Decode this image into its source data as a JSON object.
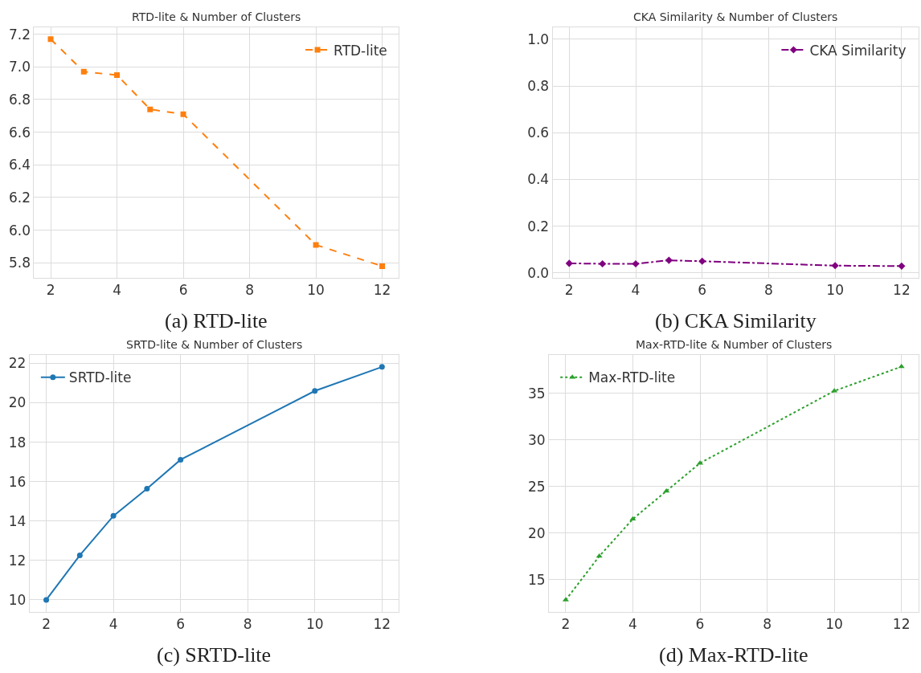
{
  "chart_data": [
    {
      "type": "line",
      "title": "RTD-lite & Number of Clusters",
      "annotations": [
        "(a) RTD-lite"
      ],
      "x": [
        2,
        3,
        4,
        5,
        6,
        10,
        12
      ],
      "series": [
        {
          "name": "RTD-lite",
          "color": "#ff7f0e",
          "values": [
            7.17,
            6.97,
            6.95,
            6.74,
            6.71,
            5.91,
            5.78
          ]
        }
      ],
      "xlim": [
        1.5,
        12.5
      ],
      "ylim": [
        5.71,
        7.24
      ],
      "xticks": [
        2,
        4,
        6,
        8,
        10,
        12
      ],
      "yticks": [
        {
          "value": 5.8,
          "label": "5.8"
        },
        {
          "value": 6,
          "label": "6.0"
        },
        {
          "value": 6.2,
          "label": "6.2"
        },
        {
          "value": 6.4,
          "label": "6.4"
        },
        {
          "value": 6.6,
          "label": "6.6"
        },
        {
          "value": 6.8,
          "label": "6.8"
        },
        {
          "value": 7,
          "label": "7.0"
        },
        {
          "value": 7.2,
          "label": "7.2"
        }
      ],
      "grid": true,
      "legend": "top right",
      "marker": "square",
      "line_style": "dashed"
    },
    {
      "type": "line",
      "title": "CKA Similarity & Number of Clusters",
      "annotations": [
        "(b) CKA Similarity"
      ],
      "x": [
        2,
        3,
        4,
        5,
        6,
        10,
        12
      ],
      "series": [
        {
          "name": "CKA Similarity",
          "color": "#800080",
          "values": [
            0.041,
            0.039,
            0.039,
            0.054,
            0.05,
            0.031,
            0.029
          ]
        }
      ],
      "xlim": [
        1.5,
        12.5
      ],
      "ylim": [
        -0.02,
        1.05
      ],
      "xticks": [
        2,
        4,
        6,
        8,
        10,
        12
      ],
      "yticks": [
        {
          "value": 0,
          "label": "0.0"
        },
        0.2,
        0.4,
        0.6,
        0.8,
        {
          "value": 1,
          "label": "1.0"
        }
      ],
      "grid": true,
      "legend": "top right",
      "marker": "diamond",
      "line_style": "dashdot"
    },
    {
      "type": "line",
      "title": "SRTD-lite & Number of Clusters",
      "annotations": [
        "(c) SRTD-lite"
      ],
      "x": [
        2,
        3,
        4,
        5,
        6,
        10,
        12
      ],
      "series": [
        {
          "name": "SRTD-lite",
          "color": "#1f77b4",
          "values": [
            10.0,
            12.26,
            14.26,
            15.64,
            17.11,
            20.6,
            21.82
          ]
        }
      ],
      "xlim": [
        1.5,
        12.5
      ],
      "ylim": [
        9.4,
        22.42
      ],
      "xticks": [
        2,
        4,
        6,
        8,
        10,
        12
      ],
      "yticks": [
        10,
        12,
        14,
        16,
        18,
        20,
        22
      ],
      "grid": true,
      "legend": "top left",
      "marker": "circle",
      "line_style": "solid"
    },
    {
      "type": "line",
      "title": "Max-RTD-lite & Number of Clusters",
      "annotations": [
        "(d) Max-RTD-lite"
      ],
      "x": [
        2,
        3,
        4,
        5,
        6,
        10,
        12
      ],
      "series": [
        {
          "name": "Max-RTD-lite",
          "color": "#2ca02c",
          "values": [
            12.8,
            17.5,
            21.5,
            24.5,
            27.5,
            35.25,
            37.86
          ]
        }
      ],
      "xlim": [
        1.5,
        12.5
      ],
      "ylim": [
        11.55,
        39.1
      ],
      "xticks": [
        2,
        4,
        6,
        8,
        10,
        12
      ],
      "yticks": [
        15,
        20,
        25,
        30,
        35
      ],
      "grid": true,
      "legend": "top left",
      "marker": "triangle",
      "line_style": "dotted"
    }
  ]
}
